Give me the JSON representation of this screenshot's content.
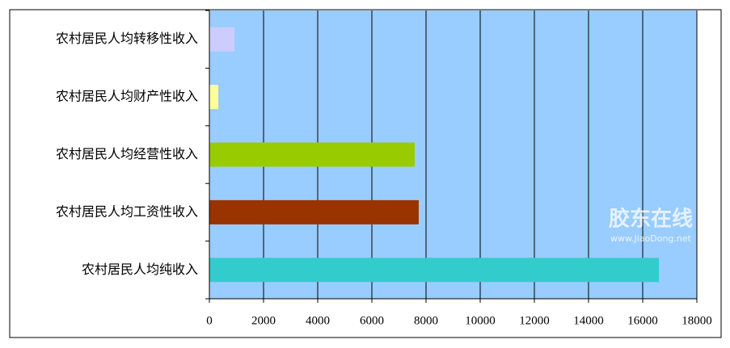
{
  "chart_data": {
    "type": "bar",
    "orientation": "horizontal",
    "categories": [
      "农村居民人均转移性收入",
      "农村居民人均财产性收入",
      "农村居民人均经营性收入",
      "农村居民人均工资性收入",
      "农村居民人均纯收入"
    ],
    "values": [
      930,
      330,
      7580,
      7730,
      16600
    ],
    "colors": [
      "#ccccff",
      "#ffff99",
      "#99cc00",
      "#993300",
      "#33cccc"
    ],
    "plot_background": "#99ccff",
    "xlim": [
      0,
      18000
    ],
    "xticks": [
      0,
      2000,
      4000,
      6000,
      8000,
      10000,
      12000,
      14000,
      16000,
      18000
    ],
    "grid": true,
    "watermark": {
      "title": "胶东在线",
      "url": "www.JiaoDong.net"
    }
  }
}
